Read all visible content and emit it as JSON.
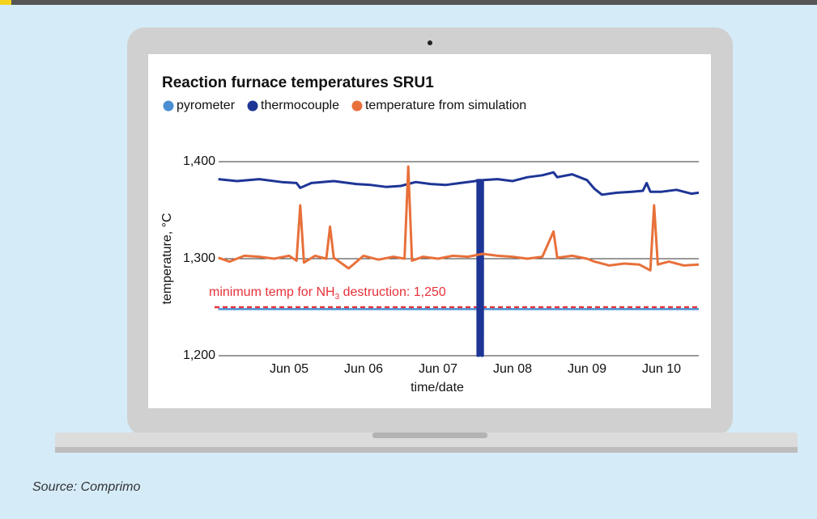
{
  "chart_data": {
    "type": "line",
    "title": "Reaction furnace temperatures SRU1",
    "ylabel": "temperature, °C",
    "xlabel": "time/date",
    "xlim": [
      4,
      10.5
    ],
    "ylim": [
      1200,
      1400
    ],
    "yticks": [
      {
        "value": 1200,
        "label": "1,200"
      },
      {
        "value": 1300,
        "label": "1,300"
      },
      {
        "value": 1400,
        "label": "1,400"
      }
    ],
    "xticks": [
      {
        "value": 5,
        "label": "Jun 05"
      },
      {
        "value": 6,
        "label": "Jun 06"
      },
      {
        "value": 7,
        "label": "Jun 07"
      },
      {
        "value": 8,
        "label": "Jun 08"
      },
      {
        "value": 9,
        "label": "Jun 09"
      },
      {
        "value": 10,
        "label": "Jun 10"
      }
    ],
    "grid": true,
    "threshold": {
      "value": 1250,
      "color": "#e8313a",
      "label_parts": [
        "minimum temp for NH",
        "3",
        " destruction: 1,250"
      ]
    },
    "series": [
      {
        "name": "pyrometer",
        "color": "#4a8fd2",
        "x": [
          4.05,
          10.5
        ],
        "values": [
          1248,
          1248
        ]
      },
      {
        "name": "thermocouple",
        "color": "#1e3596",
        "x": [
          4.05,
          4.3,
          4.6,
          4.9,
          5.1,
          5.15,
          5.3,
          5.6,
          5.9,
          6.1,
          6.3,
          6.5,
          6.7,
          6.9,
          7.1,
          7.3,
          7.5,
          7.53,
          7.531,
          7.55,
          7.551,
          7.58,
          7.581,
          7.6,
          7.601,
          7.8,
          8.0,
          8.2,
          8.4,
          8.55,
          8.6,
          8.8,
          9.0,
          9.1,
          9.2,
          9.4,
          9.6,
          9.75,
          9.8,
          9.85,
          10.0,
          10.2,
          10.4,
          10.5
        ],
        "values": [
          1382,
          1380,
          1382,
          1379,
          1378,
          1373,
          1378,
          1380,
          1377,
          1376,
          1374,
          1375,
          1379,
          1377,
          1376,
          1378,
          1380,
          1381,
          1200,
          1200,
          1381,
          1381,
          1200,
          1200,
          1381,
          1382,
          1380,
          1384,
          1386,
          1389,
          1384,
          1387,
          1381,
          1372,
          1366,
          1368,
          1369,
          1370,
          1378,
          1369,
          1369,
          1371,
          1367,
          1368
        ]
      },
      {
        "name": "temperature from simulation",
        "color": "#e8703a",
        "x": [
          4.05,
          4.2,
          4.4,
          4.6,
          4.8,
          5.0,
          5.1,
          5.15,
          5.2,
          5.35,
          5.5,
          5.55,
          5.6,
          5.8,
          6.0,
          6.2,
          6.4,
          6.55,
          6.6,
          6.65,
          6.8,
          7.0,
          7.2,
          7.4,
          7.6,
          7.8,
          8.0,
          8.2,
          8.4,
          8.55,
          8.6,
          8.8,
          9.0,
          9.1,
          9.3,
          9.5,
          9.7,
          9.85,
          9.9,
          9.95,
          10.1,
          10.3,
          10.5
        ],
        "values": [
          1301,
          1297,
          1303,
          1302,
          1300,
          1303,
          1298,
          1355,
          1296,
          1303,
          1300,
          1333,
          1301,
          1290,
          1303,
          1299,
          1302,
          1300,
          1395,
          1298,
          1302,
          1300,
          1303,
          1302,
          1305,
          1303,
          1302,
          1300,
          1302,
          1328,
          1301,
          1303,
          1300,
          1297,
          1293,
          1295,
          1294,
          1288,
          1355,
          1294,
          1297,
          1293,
          1294
        ]
      }
    ]
  },
  "source": "Source: Comprimo"
}
